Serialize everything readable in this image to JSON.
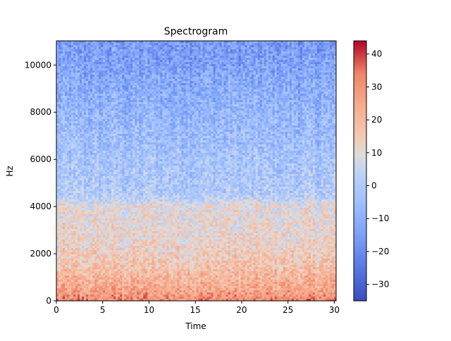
{
  "chart_data": {
    "type": "heatmap",
    "title": "Spectrogram",
    "xlabel": "Time",
    "ylabel": "Hz",
    "xlim": [
      0,
      30.2
    ],
    "ylim": [
      0,
      11025
    ],
    "x_ticks": [
      0,
      5,
      10,
      15,
      20,
      25,
      30
    ],
    "x_tick_labels": [
      "0",
      "5",
      "10",
      "15",
      "20",
      "25",
      "30"
    ],
    "y_ticks": [
      0,
      2000,
      4000,
      6000,
      8000,
      10000
    ],
    "y_tick_labels": [
      "0",
      "2000",
      "4000",
      "6000",
      "8000",
      "10000"
    ],
    "colorbar": {
      "colormap": "coolwarm",
      "range": [
        -35,
        44
      ],
      "ticks": [
        40,
        30,
        20,
        10,
        0,
        -10,
        -20,
        -30
      ],
      "tick_labels": [
        "40",
        "30",
        "20",
        "10",
        "0",
        "−10",
        "−20",
        "−30"
      ]
    },
    "intensity_profile_by_frequency": [
      {
        "hz": 0,
        "db": 32
      },
      {
        "hz": 500,
        "db": 25
      },
      {
        "hz": 1500,
        "db": 17
      },
      {
        "hz": 2500,
        "db": 12
      },
      {
        "hz": 4000,
        "db": 10
      },
      {
        "hz": 4500,
        "db": 0
      },
      {
        "hz": 6000,
        "db": -3
      },
      {
        "hz": 8000,
        "db": -8
      },
      {
        "hz": 10000,
        "db": -14
      },
      {
        "hz": 11025,
        "db": -16
      }
    ]
  }
}
